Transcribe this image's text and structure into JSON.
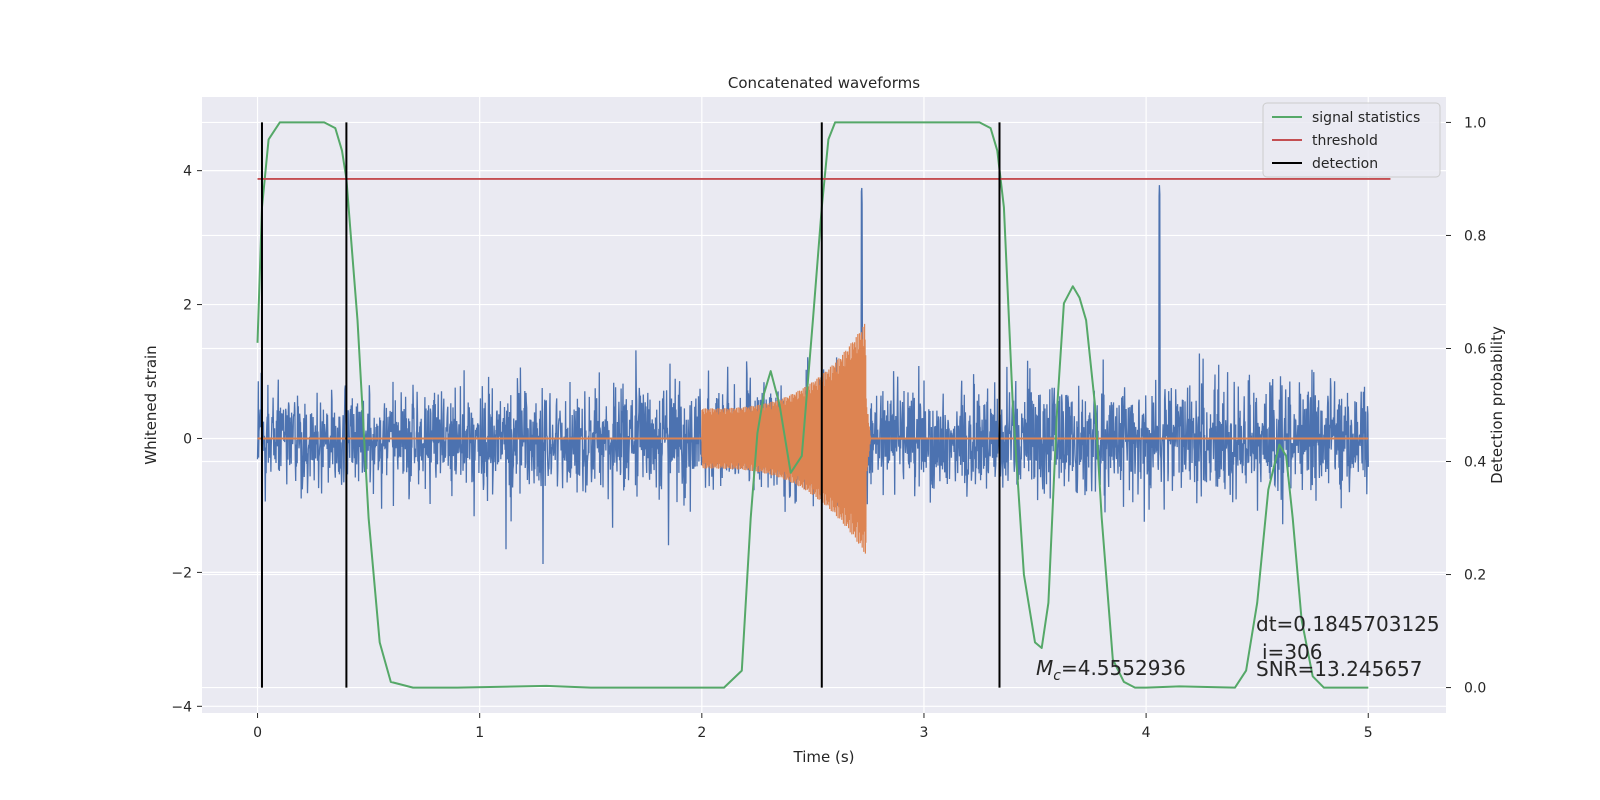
{
  "chart_data": {
    "type": "line",
    "title": "Concatenated waveforms",
    "xlabel": "Time (s)",
    "ylabel": "Whitened strain",
    "y2label": "Detection probability",
    "xlim": [
      -0.25,
      5.35
    ],
    "ylim": [
      -4.1,
      5.1
    ],
    "y2lim": [
      -0.045,
      1.045
    ],
    "x_ticks": [
      0,
      1,
      2,
      3,
      4,
      5
    ],
    "y_ticks": [
      -4,
      -2,
      0,
      2,
      4
    ],
    "y2_ticks": [
      0.0,
      0.2,
      0.4,
      0.6,
      0.8,
      1.0
    ],
    "y2_tick_labels": [
      "0.0",
      "0.2",
      "0.4",
      "0.6",
      "0.8",
      "1.0"
    ],
    "grid": true,
    "legend_position": "top-right",
    "colors": {
      "noise": "#4c72b0",
      "waveform": "#dd8452",
      "signal_statistics": "#55a868",
      "threshold": "#c44e52",
      "detection": "#000000",
      "background": "#eaeaf2"
    },
    "series": [
      {
        "name": "signal statistics",
        "axis": "right",
        "x": [
          0.0,
          0.02,
          0.05,
          0.1,
          0.15,
          0.2,
          0.3,
          0.35,
          0.38,
          0.4,
          0.42,
          0.45,
          0.5,
          0.55,
          0.6,
          0.7,
          0.9,
          1.3,
          1.5,
          1.8,
          2.1,
          2.18,
          2.22,
          2.25,
          2.28,
          2.31,
          2.35,
          2.4,
          2.45,
          2.5,
          2.54,
          2.57,
          2.6,
          2.7,
          2.9,
          3.25,
          3.3,
          3.33,
          3.36,
          3.4,
          3.45,
          3.5,
          3.53,
          3.56,
          3.6,
          3.63,
          3.67,
          3.7,
          3.73,
          3.77,
          3.8,
          3.85,
          3.9,
          3.95,
          4.0,
          4.15,
          4.4,
          4.45,
          4.5,
          4.55,
          4.6,
          4.63,
          4.66,
          4.7,
          4.75,
          4.8,
          4.85,
          5.0
        ],
        "y": [
          0.61,
          0.85,
          0.97,
          1.0,
          1.0,
          1.0,
          1.0,
          0.99,
          0.95,
          0.9,
          0.8,
          0.65,
          0.3,
          0.08,
          0.01,
          0.0,
          0.0,
          0.003,
          0.0,
          0.0,
          0.0,
          0.03,
          0.3,
          0.45,
          0.52,
          0.56,
          0.5,
          0.38,
          0.41,
          0.65,
          0.85,
          0.97,
          1.0,
          1.0,
          1.0,
          1.0,
          0.99,
          0.95,
          0.85,
          0.5,
          0.2,
          0.08,
          0.07,
          0.15,
          0.5,
          0.68,
          0.71,
          0.69,
          0.65,
          0.5,
          0.3,
          0.05,
          0.01,
          0.0,
          0.0,
          0.002,
          0.0,
          0.03,
          0.15,
          0.35,
          0.43,
          0.41,
          0.3,
          0.12,
          0.02,
          0.0,
          0.0,
          0.0
        ]
      },
      {
        "name": "threshold",
        "axis": "right",
        "x": [
          0.0,
          5.1
        ],
        "y": [
          0.9,
          0.9
        ]
      },
      {
        "name": "detection",
        "axis": "right",
        "x": [
          0.02,
          0.4,
          2.54,
          3.34
        ],
        "y_range": [
          0.0,
          1.0
        ]
      }
    ],
    "annotations": {
      "mc_symbol": "M",
      "mc_subscript": "c",
      "mc_value": "=4.5552936",
      "dt": "dt=0.1845703125",
      "i": "i=306",
      "snr": "SNR=13.245657"
    }
  }
}
